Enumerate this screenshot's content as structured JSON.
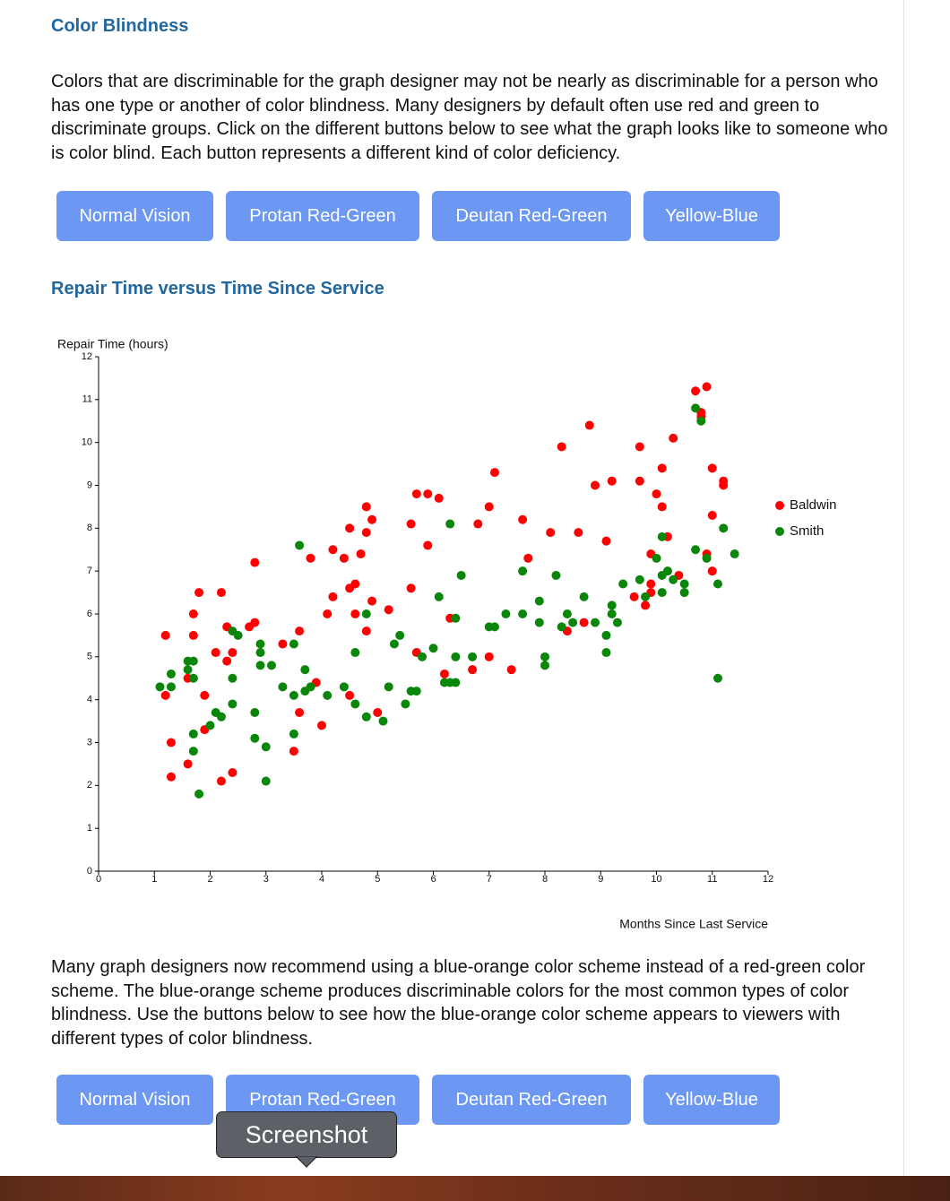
{
  "heading": "Color Blindness",
  "intro": "Colors that are discriminable for the graph designer may not be nearly as discriminable for a person who has one type or another of color blindness. Many designers by default often use red and green to discriminate groups. Click on the different buttons below to see what the graph looks like to someone who is color blind. Each button represents a different kind of color deficiency.",
  "buttons": [
    "Normal Vision",
    "Protan Red-Green",
    "Deutan Red-Green",
    "Yellow-Blue"
  ],
  "chart_heading": "Repair Time versus Time Since Service",
  "chart_data": {
    "type": "scatter",
    "y_label": "Repair Time (hours)",
    "x_label": "Months Since Last Service",
    "xlim": [
      0,
      12
    ],
    "ylim": [
      0,
      12
    ],
    "xticks": [
      0,
      1,
      2,
      3,
      4,
      5,
      6,
      7,
      8,
      9,
      10,
      11,
      12
    ],
    "yticks": [
      0,
      1,
      2,
      3,
      4,
      5,
      6,
      7,
      8,
      9,
      10,
      11,
      12
    ],
    "legend": "right",
    "series": [
      {
        "name": "Baldwin",
        "color": "#ff0000",
        "x": [
          1.2,
          1.2,
          1.3,
          1.3,
          1.6,
          1.6,
          1.7,
          1.7,
          1.8,
          1.9,
          1.9,
          2.1,
          2.2,
          2.2,
          2.3,
          2.3,
          2.4,
          2.4,
          2.7,
          2.8,
          2.8,
          3.3,
          3.5,
          3.6,
          3.6,
          3.8,
          3.9,
          4.0,
          4.1,
          4.2,
          4.2,
          4.4,
          4.5,
          4.5,
          4.5,
          4.6,
          4.6,
          4.7,
          4.8,
          4.8,
          4.9,
          4.8,
          4.9,
          5.0,
          5.2,
          5.6,
          5.6,
          5.7,
          5.7,
          5.9,
          5.9,
          6.1,
          6.2,
          6.3,
          6.7,
          6.8,
          7.0,
          7.0,
          7.1,
          7.4,
          7.6,
          7.7,
          8.1,
          8.3,
          8.4,
          8.6,
          8.7,
          8.8,
          8.9,
          9.1,
          9.2,
          9.6,
          9.7,
          9.7,
          9.8,
          9.9,
          9.9,
          10.0,
          10.1,
          10.1,
          9.9,
          10.2,
          10.3,
          10.4,
          10.7,
          10.8,
          10.9,
          10.9,
          11.0,
          11.0,
          11.0,
          11.2,
          11.2,
          10.8
        ],
        "values": [
          5.5,
          4.1,
          3.0,
          2.2,
          2.5,
          4.5,
          6.0,
          5.5,
          6.5,
          4.1,
          3.3,
          5.1,
          6.5,
          2.1,
          4.9,
          5.7,
          5.1,
          2.3,
          5.7,
          5.8,
          7.2,
          5.3,
          2.8,
          5.6,
          3.7,
          7.3,
          4.4,
          3.4,
          6.0,
          6.4,
          7.5,
          7.3,
          6.6,
          4.1,
          8.0,
          6.7,
          6.0,
          7.4,
          8.5,
          7.9,
          8.2,
          5.6,
          6.3,
          3.7,
          6.1,
          8.1,
          6.6,
          5.1,
          8.8,
          8.8,
          7.6,
          8.7,
          4.6,
          5.9,
          4.7,
          8.1,
          8.5,
          5.0,
          9.3,
          4.7,
          8.2,
          7.3,
          7.9,
          9.9,
          5.6,
          7.9,
          5.8,
          10.4,
          9.0,
          7.7,
          9.1,
          6.4,
          9.9,
          9.1,
          6.2,
          6.7,
          6.5,
          8.8,
          8.5,
          9.4,
          7.4,
          7.8,
          10.1,
          6.9,
          11.2,
          10.6,
          11.3,
          7.4,
          9.4,
          7.0,
          8.3,
          9.1,
          9.0,
          10.7
        ]
      },
      {
        "name": "Smith",
        "color": "#0a860a",
        "x": [
          1.1,
          1.3,
          1.3,
          1.6,
          1.6,
          1.7,
          1.7,
          1.7,
          1.7,
          1.8,
          2.0,
          2.1,
          2.2,
          2.4,
          2.4,
          2.4,
          2.5,
          2.8,
          2.8,
          2.9,
          2.9,
          2.9,
          3.0,
          3.0,
          3.1,
          3.3,
          3.5,
          3.5,
          3.5,
          3.6,
          3.7,
          3.7,
          3.8,
          4.1,
          4.4,
          4.6,
          4.6,
          4.8,
          4.8,
          5.1,
          5.2,
          5.3,
          5.4,
          5.5,
          5.6,
          5.7,
          5.8,
          6.0,
          6.1,
          6.2,
          6.3,
          6.4,
          6.3,
          6.4,
          6.4,
          6.5,
          6.7,
          7.0,
          7.1,
          7.3,
          7.6,
          7.6,
          7.9,
          7.9,
          8.0,
          8.0,
          8.2,
          8.3,
          8.4,
          8.5,
          8.7,
          8.9,
          9.1,
          9.1,
          9.2,
          9.2,
          9.3,
          9.4,
          9.7,
          9.8,
          10.0,
          10.1,
          10.1,
          10.1,
          10.2,
          10.3,
          10.5,
          10.5,
          10.7,
          10.7,
          10.8,
          10.9,
          11.1,
          11.1,
          11.2,
          11.4
        ],
        "values": [
          4.3,
          4.6,
          4.3,
          4.7,
          4.9,
          4.9,
          4.5,
          3.2,
          2.8,
          1.8,
          3.4,
          3.7,
          3.6,
          4.5,
          3.9,
          5.6,
          5.5,
          3.7,
          3.1,
          5.3,
          5.1,
          4.8,
          2.9,
          2.1,
          4.8,
          4.3,
          5.3,
          3.2,
          4.1,
          7.6,
          4.7,
          4.2,
          4.3,
          4.1,
          4.3,
          5.1,
          3.9,
          6.0,
          3.6,
          3.5,
          4.3,
          5.3,
          5.5,
          3.9,
          4.2,
          4.2,
          5.0,
          5.2,
          6.4,
          4.4,
          4.4,
          4.4,
          8.1,
          5.9,
          5.0,
          6.9,
          5.0,
          5.7,
          5.7,
          6.0,
          6.0,
          7.0,
          6.3,
          5.8,
          5.0,
          4.8,
          6.9,
          5.7,
          6.0,
          5.8,
          6.4,
          5.8,
          5.5,
          5.1,
          6.2,
          6.0,
          5.8,
          6.7,
          6.8,
          6.4,
          7.3,
          7.8,
          6.9,
          6.5,
          7.0,
          6.8,
          6.7,
          6.5,
          10.8,
          7.5,
          10.5,
          7.3,
          6.7,
          4.5,
          8.0,
          7.4
        ]
      }
    ]
  },
  "outro": "Many graph designers now recommend using a blue-orange color scheme instead of a red-green color scheme. The blue-orange scheme produces discriminable colors for the most common types of color blindness. Use the buttons below to see how the blue-orange color scheme appears to viewers with different types of color blindness.",
  "buttons2": [
    "Normal Vision",
    "Protan Red-Green",
    "Deutan Red-Green",
    "Yellow-Blue"
  ],
  "tooltip": "Screenshot"
}
